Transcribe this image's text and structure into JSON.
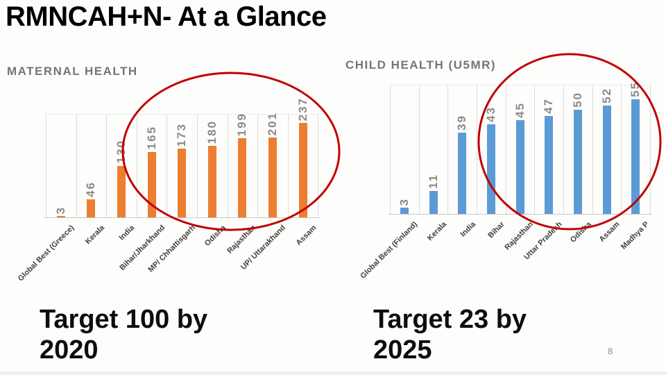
{
  "slide": {
    "title": "RMNCAH+N- At a Glance",
    "page_number": "8"
  },
  "chart_data": [
    {
      "type": "bar",
      "title": "MATERNAL HEALTH",
      "categories": [
        "Global Best (Greece)",
        "Kerala",
        "India",
        "Bihar/Jharkhand",
        "MP/ Chhattisgarh",
        "Odisha",
        "Rajasthan",
        "UP/ Uttarakhand",
        "Assam"
      ],
      "values": [
        3,
        46,
        130,
        165,
        173,
        180,
        199,
        201,
        237
      ],
      "bar_color": "#ED7D31",
      "label_color": "#8a8a8a",
      "ylim": [
        0,
        250
      ],
      "grid": "vertical",
      "legend": "none",
      "annotation_line1": "Target 100 by",
      "annotation_line2": "2020"
    },
    {
      "type": "bar",
      "title": "CHILD HEALTH (U5MR)",
      "categories": [
        "Global Best (Finland)",
        "Kerala",
        "India",
        "Bihar",
        "Rajasthan",
        "Uttar Pradesh",
        "Odisha",
        "Assam",
        "Madhya P"
      ],
      "values": [
        3,
        11,
        39,
        43,
        45,
        47,
        50,
        52,
        55
      ],
      "bar_color": "#5B9BD5",
      "label_color": "#8a8a8a",
      "ylim": [
        0,
        60
      ],
      "grid": "vertical",
      "legend": "none",
      "annotation_line1": "Target 23 by",
      "annotation_line2": "2025"
    }
  ],
  "annotations": {
    "highlight_color": "#C00000"
  }
}
